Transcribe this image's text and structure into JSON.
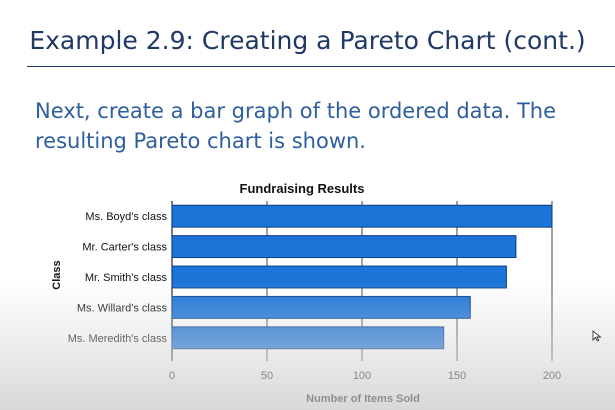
{
  "slide": {
    "title": "Example 2.9: Creating a Pareto Chart (cont.)",
    "body": "Next, create a bar graph of the ordered data. The resulting Pareto chart is shown."
  },
  "colors": {
    "bar": "#1b74d8",
    "bar_edge": "#0a3f86",
    "title": "#1f3864",
    "body": "#2e5e9e"
  },
  "chart_data": {
    "type": "bar",
    "orientation": "horizontal",
    "title": "Fundraising Results",
    "xlabel": "Number of Items Sold",
    "ylabel": "Class",
    "categories": [
      "Ms. Boyd's class",
      "Mr. Carter's class",
      "Mr. Smith's class",
      "Ms. Willard's class",
      "Ms. Meredith's class"
    ],
    "values": [
      200,
      181,
      176,
      157,
      143
    ],
    "xlim": [
      0,
      200
    ],
    "xticks": [
      "0",
      "50",
      "100",
      "150",
      "200"
    ],
    "grid": true,
    "legend": false
  }
}
